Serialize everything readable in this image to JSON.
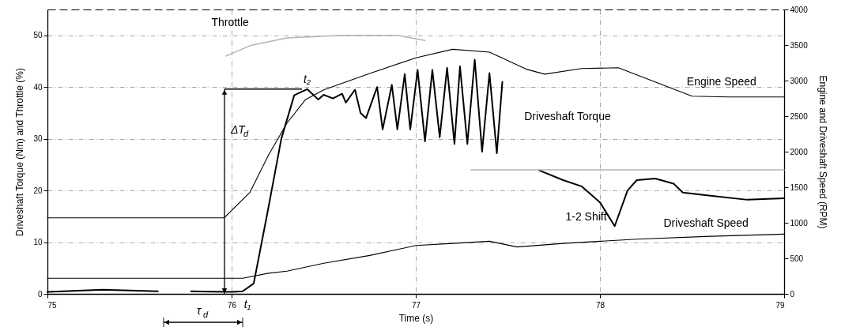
{
  "chart_data": {
    "type": "line",
    "xlabel": "Time (s)",
    "ylabel": "Driveshaft Torque (Nm) and Throttle (%)",
    "y2label": "Engine and Driveshaft Speed (RPM)",
    "xlim": [
      75,
      79
    ],
    "xticks": [
      75,
      76,
      77,
      78,
      79
    ],
    "ylim": [
      0,
      55
    ],
    "yticks": [
      0,
      10,
      20,
      30,
      40,
      50
    ],
    "y2lim": [
      0,
      4000
    ],
    "y2ticks": [
      0,
      500,
      1000,
      1500,
      2000,
      2500,
      3000,
      3500,
      4000
    ],
    "grid": true,
    "series": [
      {
        "name": "Driveshaft Torque",
        "color": "#000000",
        "x": [
          75,
          75.3,
          75.6,
          75.63,
          75.78,
          76.0,
          76.06,
          76.12,
          76.2,
          76.27,
          76.34,
          76.41,
          76.47,
          76.5,
          76.55,
          76.6,
          76.62,
          76.67,
          76.7,
          76.73,
          76.79,
          76.82,
          76.87,
          76.9,
          76.94,
          76.97,
          77.01,
          77.05,
          77.09,
          77.13,
          77.17,
          77.21,
          77.24,
          77.28,
          77.32,
          77.36,
          77.4,
          77.44,
          77.47,
          77.5,
          77.67,
          77.8,
          77.9,
          78.0,
          78.08,
          78.15,
          78.2,
          78.3,
          78.4,
          78.45,
          78.6,
          78.8,
          79
        ],
        "values": [
          0.4,
          0.8,
          0.5,
          null,
          0.5,
          0.4,
          0.5,
          2,
          16.7,
          30,
          38.4,
          39.6,
          37.6,
          38.5,
          37.8,
          38.7,
          37,
          39.5,
          35,
          34,
          40,
          31.8,
          40.4,
          31.8,
          42.5,
          31.8,
          43.3,
          29.5,
          43.3,
          30.3,
          43.7,
          29,
          44,
          29,
          45.3,
          27.5,
          42.7,
          27.2,
          41,
          null,
          23.9,
          22,
          20.8,
          17.7,
          13.1,
          20,
          22,
          22.3,
          21.3,
          19.6,
          19,
          18.2,
          18.5
        ]
      },
      {
        "name": "Throttle",
        "color": "#b4b4b4",
        "x": [
          75.97,
          76.1,
          76.3,
          76.6,
          76.9,
          77.05,
          77.1,
          77.3,
          78,
          79
        ],
        "values": [
          46,
          48,
          49.5,
          50,
          50,
          49,
          null,
          24,
          24,
          24
        ]
      },
      {
        "name": "Engine Speed",
        "color": "#000000",
        "axis": "y2",
        "x": [
          75,
          75.96,
          76.1,
          76.2,
          76.3,
          76.4,
          76.5,
          76.75,
          77,
          77.2,
          77.4,
          77.6,
          77.7,
          77.9,
          78.1,
          78.3,
          78.5,
          78.7,
          79
        ],
        "values": [
          1070,
          1070,
          1430,
          1950,
          2400,
          2730,
          2870,
          3100,
          3320,
          3440,
          3400,
          3160,
          3090,
          3170,
          3180,
          2980,
          2780,
          2770,
          2770
        ]
      },
      {
        "name": "Driveshaft Speed",
        "color": "#000000",
        "axis": "y2",
        "x": [
          75,
          76.06,
          76.2,
          76.3,
          76.5,
          76.75,
          77,
          77.2,
          77.4,
          77.55,
          77.8,
          78.2,
          78.6,
          79
        ],
        "values": [
          220,
          220,
          290,
          320,
          430,
          540,
          680,
          710,
          740,
          660,
          710,
          770,
          810,
          840
        ]
      }
    ],
    "annotations": [
      {
        "text": "t₂",
        "x": 76.41,
        "y": 39.6
      },
      {
        "text": "t₁",
        "x": 76.06,
        "y": 0
      },
      "ΔT$_{d}$",
      "τ$_{d}$",
      {
        "text": "1-2 Shift",
        "x": 78.08,
        "y": 13.1
      }
    ]
  }
}
